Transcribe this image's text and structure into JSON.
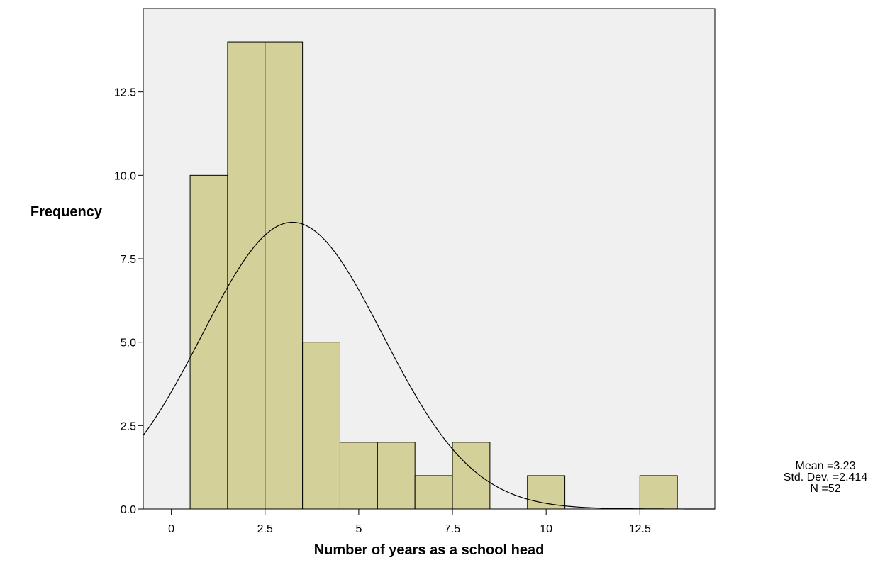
{
  "chart_data": {
    "type": "bar",
    "subtype": "histogram",
    "title": "",
    "xlabel": "Number of years as a school head",
    "ylabel": "Frequency",
    "bin_width": 1,
    "bins": [
      {
        "center": 1,
        "count": 10
      },
      {
        "center": 2,
        "count": 14
      },
      {
        "center": 3,
        "count": 14
      },
      {
        "center": 4,
        "count": 5
      },
      {
        "center": 5,
        "count": 2
      },
      {
        "center": 6,
        "count": 2
      },
      {
        "center": 7,
        "count": 1
      },
      {
        "center": 8,
        "count": 2
      },
      {
        "center": 10,
        "count": 1
      },
      {
        "center": 13,
        "count": 1
      }
    ],
    "xlim": [
      -0.75,
      14.5
    ],
    "ylim": [
      0,
      15
    ],
    "x_ticks": [
      0,
      2.5,
      5,
      7.5,
      10,
      12.5
    ],
    "x_tick_labels": [
      "0",
      "2.5",
      "5",
      "7.5",
      "10",
      "12.5"
    ],
    "y_ticks": [
      0,
      2.5,
      5,
      7.5,
      10,
      12.5
    ],
    "y_tick_labels": [
      "0.0",
      "2.5",
      "5.0",
      "7.5",
      "10.0",
      "12.5"
    ],
    "normal_curve": {
      "mean": 3.23,
      "sd": 2.414,
      "n": 52
    },
    "stats_lines": [
      "Mean =3.23",
      "Std. Dev. =2.414",
      "N =52"
    ],
    "grid": false,
    "colors": {
      "bar_fill": "#d4d09a",
      "bar_stroke": "#000000",
      "plot_background": "#f0f0f0",
      "curve": "#000000"
    }
  }
}
